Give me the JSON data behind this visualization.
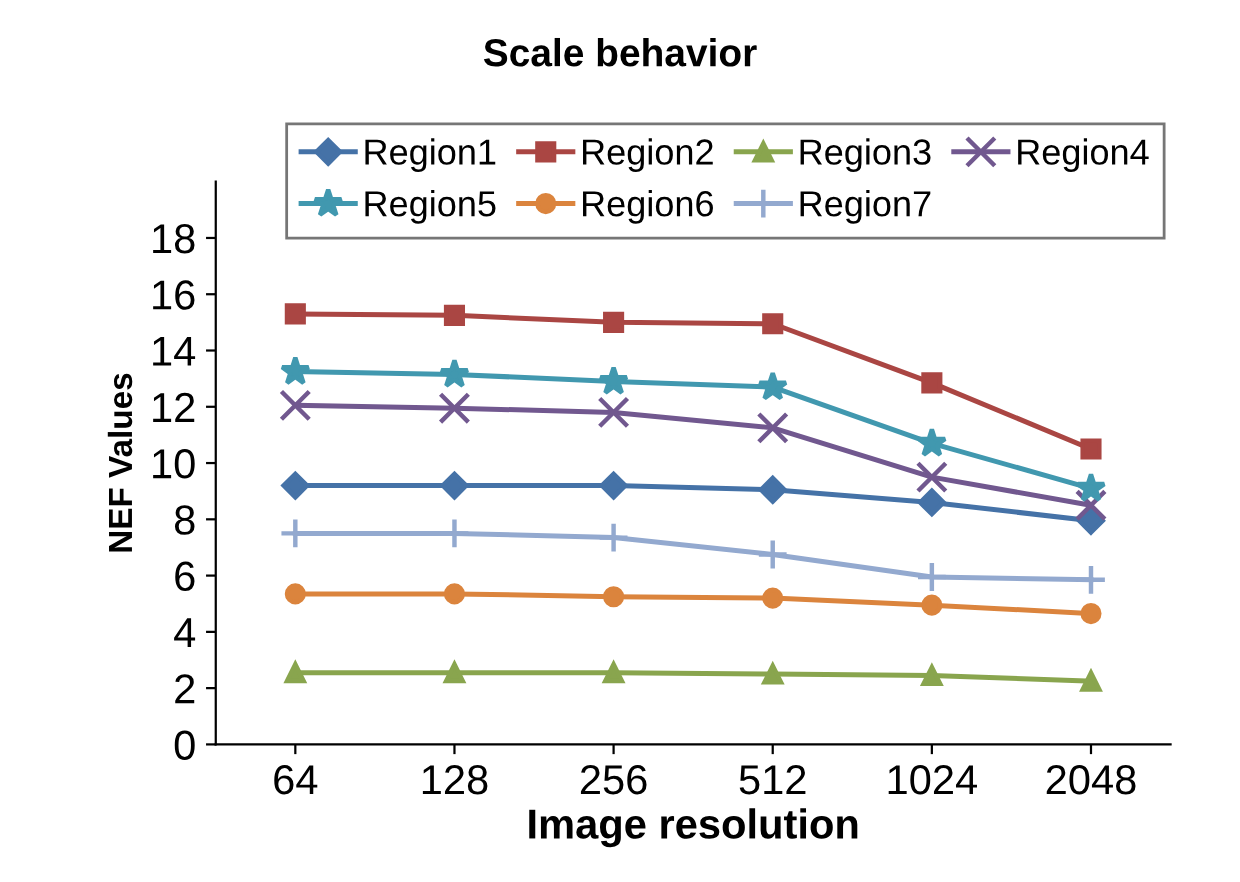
{
  "chart_data": {
    "type": "line",
    "title": "Scale behavior",
    "xlabel": "Image resolution",
    "ylabel": "NEF Values",
    "categories": [
      "64",
      "128",
      "256",
      "512",
      "1024",
      "2048"
    ],
    "series": [
      {
        "name": "Region1",
        "color": "#4572a7",
        "marker": "diamond",
        "values": [
          9.2,
          9.2,
          9.2,
          9.05,
          8.6,
          7.95
        ]
      },
      {
        "name": "Region2",
        "color": "#aa4643",
        "marker": "square",
        "values": [
          15.3,
          15.25,
          15.0,
          14.95,
          12.85,
          10.5
        ]
      },
      {
        "name": "Region3",
        "color": "#89a54e",
        "marker": "triangle",
        "values": [
          2.55,
          2.55,
          2.55,
          2.5,
          2.45,
          2.25
        ]
      },
      {
        "name": "Region4",
        "color": "#71588f",
        "marker": "cross",
        "values": [
          12.05,
          11.95,
          11.8,
          11.25,
          9.5,
          8.5
        ]
      },
      {
        "name": "Region5",
        "color": "#4198af",
        "marker": "star",
        "values": [
          13.25,
          13.15,
          12.9,
          12.7,
          10.7,
          9.1
        ]
      },
      {
        "name": "Region6",
        "color": "#db843d",
        "marker": "circle",
        "values": [
          5.35,
          5.35,
          5.25,
          5.2,
          4.95,
          4.65
        ]
      },
      {
        "name": "Region7",
        "color": "#93a9cf",
        "marker": "plus",
        "values": [
          7.5,
          7.5,
          7.35,
          6.75,
          5.95,
          5.85
        ]
      }
    ],
    "ylim": [
      0,
      20
    ],
    "yticks": [
      0,
      2,
      4,
      6,
      8,
      10,
      12,
      14,
      16,
      18
    ],
    "grid": false,
    "legend": "top",
    "line_style": "solid"
  }
}
